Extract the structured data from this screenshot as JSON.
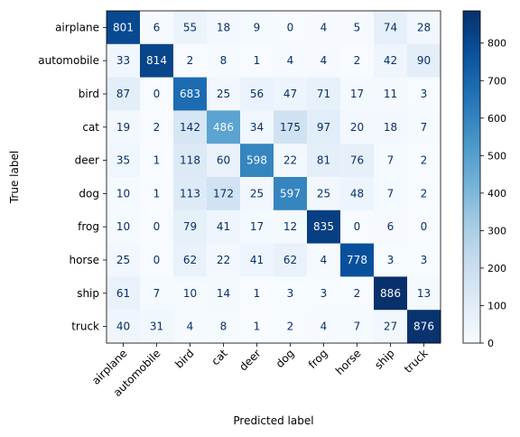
{
  "chart_data": {
    "type": "heatmap",
    "title": "",
    "xlabel": "Predicted label",
    "ylabel": "True label",
    "x_categories": [
      "airplane",
      "automobile",
      "bird",
      "cat",
      "deer",
      "dog",
      "frog",
      "horse",
      "ship",
      "truck"
    ],
    "y_categories": [
      "airplane",
      "automobile",
      "bird",
      "cat",
      "deer",
      "dog",
      "frog",
      "horse",
      "ship",
      "truck"
    ],
    "matrix": [
      [
        801,
        6,
        55,
        18,
        9,
        0,
        4,
        5,
        74,
        28
      ],
      [
        33,
        814,
        2,
        8,
        1,
        4,
        4,
        2,
        42,
        90
      ],
      [
        87,
        0,
        683,
        25,
        56,
        47,
        71,
        17,
        11,
        3
      ],
      [
        19,
        2,
        142,
        486,
        34,
        175,
        97,
        20,
        18,
        7
      ],
      [
        35,
        1,
        118,
        60,
        598,
        22,
        81,
        76,
        7,
        2
      ],
      [
        10,
        1,
        113,
        172,
        25,
        597,
        25,
        48,
        7,
        2
      ],
      [
        10,
        0,
        79,
        41,
        17,
        12,
        835,
        0,
        6,
        0
      ],
      [
        25,
        0,
        62,
        22,
        41,
        62,
        4,
        778,
        3,
        3
      ],
      [
        61,
        7,
        10,
        14,
        1,
        3,
        3,
        2,
        886,
        13
      ],
      [
        40,
        31,
        4,
        8,
        1,
        2,
        4,
        7,
        27,
        876
      ]
    ],
    "colormap": "Blues",
    "vmin": 0,
    "vmax": 886,
    "colorbar_ticks": [
      0,
      100,
      200,
      300,
      400,
      500,
      600,
      700,
      800
    ],
    "x_tick_rotation_deg": 45,
    "grid": false,
    "colors": {
      "low": "#f7fbff",
      "high": "#08306b",
      "text_dark": "#08306b",
      "text_light": "#f7fbff"
    }
  }
}
